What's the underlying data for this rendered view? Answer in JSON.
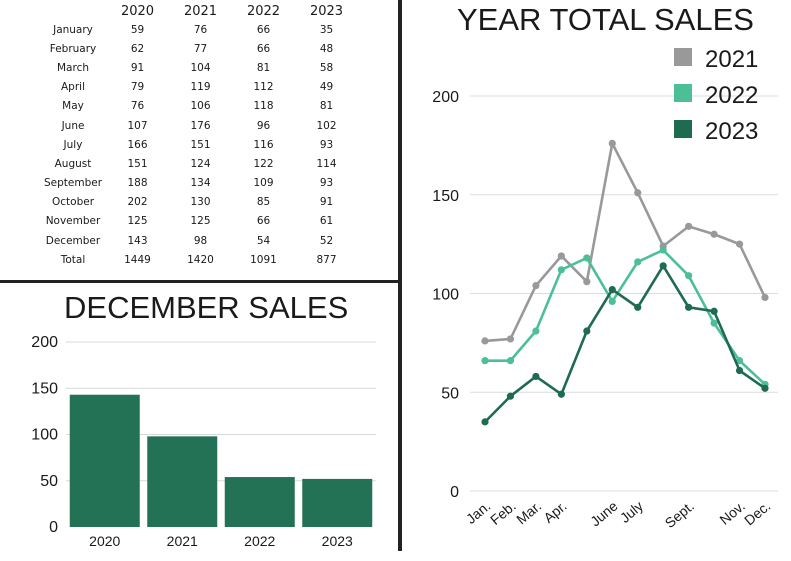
{
  "table": {
    "headers": [
      "",
      "2020",
      "2021",
      "2022",
      "2023"
    ],
    "rows": [
      [
        "January",
        "59",
        "76",
        "66",
        "35"
      ],
      [
        "February",
        "62",
        "77",
        "66",
        "48"
      ],
      [
        "March",
        "91",
        "104",
        "81",
        "58"
      ],
      [
        "April",
        "79",
        "119",
        "112",
        "49"
      ],
      [
        "May",
        "76",
        "106",
        "118",
        "81"
      ],
      [
        "June",
        "107",
        "176",
        "96",
        "102"
      ],
      [
        "July",
        "166",
        "151",
        "116",
        "93"
      ],
      [
        "August",
        "151",
        "124",
        "122",
        "114"
      ],
      [
        "September",
        "188",
        "134",
        "109",
        "93"
      ],
      [
        "October",
        "202",
        "130",
        "85",
        "91"
      ],
      [
        "November",
        "125",
        "125",
        "66",
        "61"
      ],
      [
        "December",
        "143",
        "98",
        "54",
        "52"
      ],
      [
        "Total",
        "1449",
        "1420",
        "1091",
        "877"
      ]
    ]
  },
  "chart_data": [
    {
      "type": "bar",
      "title": "DECEMBER SALES",
      "categories": [
        "2020",
        "2021",
        "2022",
        "2023"
      ],
      "values": [
        143,
        98,
        54,
        52
      ],
      "ylim": [
        0,
        200
      ],
      "yticks": [
        "0",
        "50",
        "100",
        "150",
        "200"
      ],
      "grid": true,
      "color": "#247256"
    },
    {
      "type": "line",
      "title": "YEAR TOTAL SALES",
      "x_labels": [
        "Jan.",
        "Feb.",
        "Mar.",
        "Apr.",
        "",
        "June",
        "July",
        "",
        "Sept.",
        "",
        "Nov.",
        "Dec."
      ],
      "ylim": [
        0,
        200
      ],
      "yticks": [
        "0",
        "50",
        "100",
        "150",
        "200"
      ],
      "grid": true,
      "legend_position": "top-right",
      "series": [
        {
          "name": "2021",
          "color": "#999999",
          "values": [
            76,
            77,
            104,
            119,
            106,
            176,
            151,
            124,
            134,
            130,
            125,
            98
          ]
        },
        {
          "name": "2022",
          "color": "#4dbf97",
          "values": [
            66,
            66,
            81,
            112,
            118,
            96,
            116,
            122,
            109,
            85,
            66,
            54
          ]
        },
        {
          "name": "2023",
          "color": "#1e6b50",
          "values": [
            35,
            48,
            58,
            49,
            81,
            102,
            93,
            114,
            93,
            91,
            61,
            52
          ]
        }
      ]
    }
  ]
}
